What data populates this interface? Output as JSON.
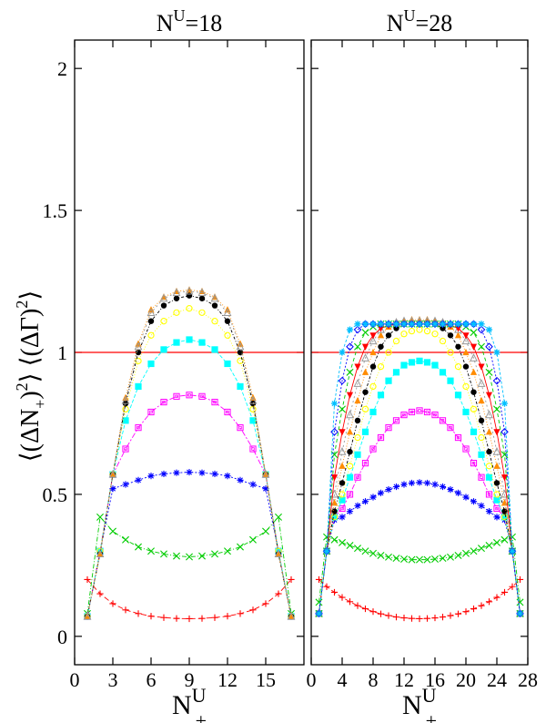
{
  "chart_data": [
    {
      "type": "line",
      "title_prefix": "N",
      "title_sup": "U",
      "title_suffix": "=18",
      "xlabel_main": "N",
      "xlabel_sup": "U",
      "xlabel_sub": "+",
      "ylabel_parts": [
        "⟨(ΔN",
        "+",
        ")",
        "2",
        "⟩ ⟨(ΔΓ)",
        "2",
        "⟩"
      ],
      "xlim": [
        0,
        18
      ],
      "ylim": [
        -0.1,
        2.1
      ],
      "xticks": [
        0,
        3,
        6,
        9,
        12,
        15
      ],
      "yticks": [
        0,
        0.5,
        1,
        1.5,
        2
      ],
      "ytick_labels": [
        "0",
        "0.5",
        "1",
        "1.5",
        "2"
      ],
      "reference_line": 1,
      "grid": false,
      "x": [
        1,
        2,
        3,
        4,
        5,
        6,
        7,
        8,
        9,
        10,
        11,
        12,
        13,
        14,
        15,
        16,
        17
      ],
      "series": [
        {
          "color": "#ff0000",
          "marker": "plus",
          "values": [
            0.2,
            0.15,
            0.115,
            0.093,
            0.08,
            0.071,
            0.066,
            0.063,
            0.062,
            0.063,
            0.066,
            0.071,
            0.08,
            0.093,
            0.115,
            0.15,
            0.2
          ]
        },
        {
          "color": "#00cc00",
          "marker": "x",
          "values": [
            0.08,
            0.42,
            0.37,
            0.34,
            0.315,
            0.3,
            0.29,
            0.283,
            0.28,
            0.283,
            0.29,
            0.3,
            0.315,
            0.34,
            0.37,
            0.42,
            0.08
          ]
        },
        {
          "color": "#0000ff",
          "marker": "asterisk",
          "values": [
            0.07,
            0.3,
            0.52,
            0.535,
            0.55,
            0.565,
            0.572,
            0.576,
            0.578,
            0.576,
            0.572,
            0.565,
            0.55,
            0.535,
            0.52,
            0.3,
            0.07
          ]
        },
        {
          "color": "#ff00ff",
          "marker": "square-open",
          "values": [
            0.07,
            0.3,
            0.57,
            0.66,
            0.735,
            0.79,
            0.825,
            0.845,
            0.85,
            0.845,
            0.825,
            0.79,
            0.735,
            0.66,
            0.57,
            0.3,
            0.07
          ]
        },
        {
          "color": "#00ffff",
          "marker": "square",
          "values": [
            0.07,
            0.3,
            0.57,
            0.76,
            0.88,
            0.96,
            1.01,
            1.035,
            1.045,
            1.035,
            1.01,
            0.96,
            0.88,
            0.76,
            0.57,
            0.3,
            0.07
          ]
        },
        {
          "color": "#ffff00",
          "marker": "circle-open",
          "values": [
            0.07,
            0.3,
            0.57,
            0.8,
            0.97,
            1.06,
            1.11,
            1.14,
            1.155,
            1.14,
            1.11,
            1.06,
            0.97,
            0.8,
            0.57,
            0.3,
            0.07
          ]
        },
        {
          "color": "#000000",
          "marker": "circle",
          "values": [
            0.07,
            0.29,
            0.57,
            0.82,
            1.0,
            1.11,
            1.165,
            1.19,
            1.2,
            1.19,
            1.165,
            1.11,
            1.0,
            0.82,
            0.57,
            0.29,
            0.07
          ]
        },
        {
          "color": "#ff8c00",
          "marker": "triangle",
          "values": [
            0.07,
            0.29,
            0.57,
            0.84,
            1.03,
            1.15,
            1.195,
            1.215,
            1.22,
            1.215,
            1.195,
            1.15,
            1.03,
            0.84,
            0.57,
            0.29,
            0.07
          ]
        },
        {
          "color": "#999999",
          "marker": "triangle-open",
          "values": [
            0.07,
            0.29,
            0.57,
            0.83,
            1.02,
            1.14,
            1.19,
            1.21,
            1.215,
            1.21,
            1.19,
            1.14,
            1.02,
            0.83,
            0.57,
            0.29,
            0.07
          ]
        }
      ]
    },
    {
      "type": "line",
      "title_prefix": "N",
      "title_sup": "U",
      "title_suffix": "=28",
      "xlabel_main": "N",
      "xlabel_sup": "U",
      "xlabel_sub": "+",
      "xlim": [
        0,
        28
      ],
      "ylim": [
        -0.1,
        2.1
      ],
      "xticks": [
        0,
        4,
        8,
        12,
        16,
        20,
        24,
        28
      ],
      "reference_line": 1,
      "grid": false,
      "x": [
        1,
        2,
        3,
        4,
        5,
        6,
        7,
        8,
        9,
        10,
        11,
        12,
        13,
        14,
        15,
        16,
        17,
        18,
        19,
        20,
        21,
        22,
        23,
        24,
        25,
        26,
        27
      ],
      "series": [
        {
          "color": "#ff0000",
          "marker": "plus",
          "values": [
            0.2,
            0.175,
            0.155,
            0.137,
            0.122,
            0.108,
            0.097,
            0.087,
            0.079,
            0.073,
            0.068,
            0.065,
            0.063,
            0.062,
            0.063,
            0.065,
            0.068,
            0.073,
            0.079,
            0.087,
            0.097,
            0.108,
            0.122,
            0.137,
            0.155,
            0.175,
            0.2
          ]
        },
        {
          "color": "#00cc00",
          "marker": "x",
          "values": [
            0.12,
            0.35,
            0.34,
            0.33,
            0.32,
            0.31,
            0.3,
            0.292,
            0.285,
            0.279,
            0.275,
            0.272,
            0.27,
            0.27,
            0.27,
            0.272,
            0.275,
            0.279,
            0.285,
            0.292,
            0.3,
            0.31,
            0.32,
            0.33,
            0.34,
            0.35,
            0.12
          ]
        },
        {
          "color": "#0000ff",
          "marker": "asterisk",
          "values": [
            0.08,
            0.3,
            0.41,
            0.42,
            0.44,
            0.46,
            0.475,
            0.49,
            0.505,
            0.517,
            0.527,
            0.535,
            0.54,
            0.542,
            0.54,
            0.535,
            0.527,
            0.517,
            0.505,
            0.49,
            0.475,
            0.46,
            0.44,
            0.42,
            0.41,
            0.3,
            0.08
          ]
        },
        {
          "color": "#ff00ff",
          "marker": "square-open",
          "values": [
            0.08,
            0.3,
            0.42,
            0.45,
            0.5,
            0.56,
            0.61,
            0.66,
            0.7,
            0.735,
            0.76,
            0.78,
            0.79,
            0.795,
            0.79,
            0.78,
            0.76,
            0.735,
            0.7,
            0.66,
            0.61,
            0.56,
            0.5,
            0.45,
            0.42,
            0.3,
            0.08
          ]
        },
        {
          "color": "#00ffff",
          "marker": "square",
          "values": [
            0.08,
            0.3,
            0.42,
            0.48,
            0.56,
            0.64,
            0.72,
            0.79,
            0.85,
            0.9,
            0.93,
            0.955,
            0.965,
            0.97,
            0.965,
            0.955,
            0.93,
            0.9,
            0.85,
            0.79,
            0.72,
            0.64,
            0.56,
            0.48,
            0.42,
            0.3,
            0.08
          ]
        },
        {
          "color": "#ffff00",
          "marker": "circle-open",
          "values": [
            0.08,
            0.3,
            0.42,
            0.5,
            0.6,
            0.7,
            0.8,
            0.88,
            0.95,
            1.0,
            1.04,
            1.065,
            1.075,
            1.08,
            1.075,
            1.065,
            1.04,
            1.0,
            0.95,
            0.88,
            0.8,
            0.7,
            0.6,
            0.5,
            0.42,
            0.3,
            0.08
          ]
        },
        {
          "color": "#000000",
          "marker": "circle",
          "values": [
            0.08,
            0.3,
            0.44,
            0.54,
            0.65,
            0.76,
            0.86,
            0.95,
            1.02,
            1.06,
            1.085,
            1.1,
            1.105,
            1.105,
            1.105,
            1.1,
            1.085,
            1.06,
            1.02,
            0.95,
            0.86,
            0.76,
            0.65,
            0.54,
            0.44,
            0.3,
            0.08
          ]
        },
        {
          "color": "#ff8c00",
          "marker": "triangle",
          "values": [
            0.08,
            0.3,
            0.47,
            0.6,
            0.72,
            0.83,
            0.93,
            1.0,
            1.06,
            1.09,
            1.1,
            1.11,
            1.115,
            1.115,
            1.115,
            1.11,
            1.1,
            1.09,
            1.06,
            1.0,
            0.93,
            0.83,
            0.72,
            0.6,
            0.47,
            0.3,
            0.08
          ]
        },
        {
          "color": "#999999",
          "marker": "triangle-open",
          "values": [
            0.08,
            0.3,
            0.5,
            0.65,
            0.78,
            0.89,
            0.98,
            1.04,
            1.08,
            1.1,
            1.105,
            1.11,
            1.11,
            1.11,
            1.11,
            1.11,
            1.105,
            1.1,
            1.08,
            1.04,
            0.98,
            0.89,
            0.78,
            0.65,
            0.5,
            0.3,
            0.08
          ]
        },
        {
          "color": "#ff0000",
          "marker": "triangle-down",
          "values": [
            0.08,
            0.3,
            0.56,
            0.72,
            0.85,
            0.95,
            1.02,
            1.06,
            1.085,
            1.095,
            1.1,
            1.1,
            1.1,
            1.1,
            1.1,
            1.1,
            1.1,
            1.095,
            1.085,
            1.06,
            1.02,
            0.95,
            0.85,
            0.72,
            0.56,
            0.3,
            0.08
          ]
        },
        {
          "color": "#00cc00",
          "marker": "x",
          "values": [
            0.08,
            0.3,
            0.64,
            0.8,
            0.93,
            1.02,
            1.07,
            1.09,
            1.1,
            1.1,
            1.1,
            1.1,
            1.1,
            1.1,
            1.1,
            1.1,
            1.1,
            1.1,
            1.1,
            1.09,
            1.07,
            1.02,
            0.93,
            0.8,
            0.64,
            0.3,
            0.08
          ]
        },
        {
          "color": "#0000ff",
          "marker": "diamond-open",
          "values": [
            0.08,
            0.3,
            0.72,
            0.9,
            1.02,
            1.08,
            1.1,
            1.1,
            1.1,
            1.1,
            1.1,
            1.1,
            1.1,
            1.1,
            1.1,
            1.1,
            1.1,
            1.1,
            1.1,
            1.1,
            1.1,
            1.08,
            1.02,
            0.9,
            0.72,
            0.3,
            0.08
          ]
        },
        {
          "color": "#00bfff",
          "marker": "star",
          "values": [
            0.08,
            0.3,
            0.82,
            1.0,
            1.08,
            1.1,
            1.1,
            1.1,
            1.1,
            1.1,
            1.1,
            1.1,
            1.1,
            1.1,
            1.1,
            1.1,
            1.1,
            1.1,
            1.1,
            1.1,
            1.1,
            1.1,
            1.08,
            1.0,
            0.82,
            0.3,
            0.08
          ]
        }
      ]
    }
  ]
}
